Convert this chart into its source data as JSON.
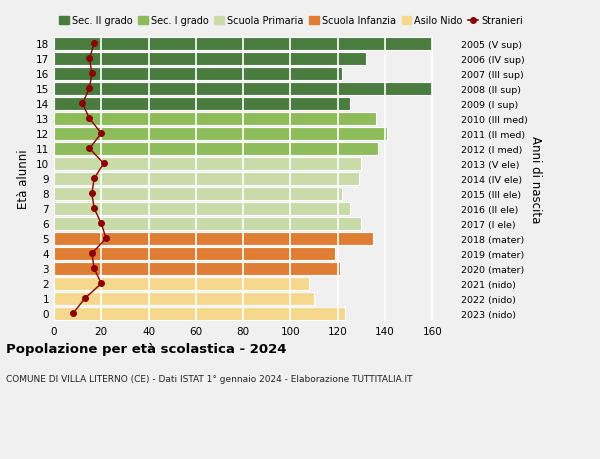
{
  "ages": [
    0,
    1,
    2,
    3,
    4,
    5,
    6,
    7,
    8,
    9,
    10,
    11,
    12,
    13,
    14,
    15,
    16,
    17,
    18
  ],
  "right_labels": [
    "2023 (nido)",
    "2022 (nido)",
    "2021 (nido)",
    "2020 (mater)",
    "2019 (mater)",
    "2018 (mater)",
    "2017 (I ele)",
    "2016 (II ele)",
    "2015 (III ele)",
    "2014 (IV ele)",
    "2013 (V ele)",
    "2012 (I med)",
    "2011 (II med)",
    "2010 (III med)",
    "2009 (I sup)",
    "2008 (II sup)",
    "2007 (III sup)",
    "2006 (IV sup)",
    "2005 (V sup)"
  ],
  "bar_values": [
    123,
    110,
    108,
    121,
    119,
    135,
    130,
    125,
    122,
    129,
    130,
    137,
    141,
    136,
    125,
    160,
    122,
    132,
    160
  ],
  "bar_colors": [
    "#f5d78e",
    "#f5d78e",
    "#f5d78e",
    "#e07d34",
    "#e07d34",
    "#e07d34",
    "#c8dba8",
    "#c8dba8",
    "#c8dba8",
    "#c8dba8",
    "#c8dba8",
    "#8fbc5a",
    "#8fbc5a",
    "#8fbc5a",
    "#4a7c3f",
    "#4a7c3f",
    "#4a7c3f",
    "#4a7c3f",
    "#4a7c3f"
  ],
  "stranieri": [
    8,
    13,
    20,
    17,
    16,
    22,
    20,
    17,
    16,
    17,
    21,
    15,
    20,
    15,
    12,
    15,
    16,
    15,
    17
  ],
  "stranieri_color": "#8b0000",
  "legend_labels": [
    "Sec. II grado",
    "Sec. I grado",
    "Scuola Primaria",
    "Scuola Infanzia",
    "Asilo Nido",
    "Stranieri"
  ],
  "legend_colors": [
    "#4a7c3f",
    "#8fbc5a",
    "#c8dba8",
    "#e07d34",
    "#f5d78e",
    "#8b0000"
  ],
  "ylabel": "Età alunni",
  "ylabel_right": "Anni di nascita",
  "title": "Popolazione per età scolastica - 2024",
  "subtitle": "COMUNE DI VILLA LITERNO (CE) - Dati ISTAT 1° gennaio 2024 - Elaborazione TUTTITALIA.IT",
  "xlim": [
    0,
    170
  ],
  "xticks": [
    0,
    20,
    40,
    60,
    80,
    100,
    120,
    140,
    160
  ],
  "bg_color": "#f0f0f0",
  "bar_height": 0.85,
  "grid_color": "#ffffff"
}
